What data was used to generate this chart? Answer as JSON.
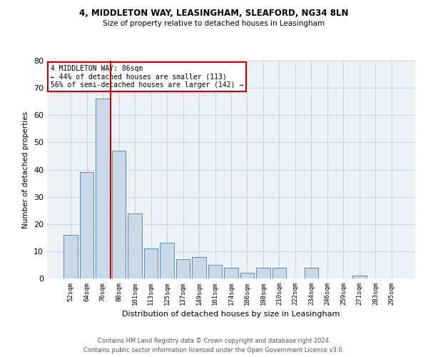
{
  "title1": "4, MIDDLETON WAY, LEASINGHAM, SLEAFORD, NG34 8LN",
  "title2": "Size of property relative to detached houses in Leasingham",
  "xlabel": "Distribution of detached houses by size in Leasingham",
  "ylabel": "Number of detached properties",
  "categories": [
    "52sqm",
    "64sqm",
    "76sqm",
    "88sqm",
    "101sqm",
    "113sqm",
    "125sqm",
    "137sqm",
    "149sqm",
    "161sqm",
    "174sqm",
    "186sqm",
    "198sqm",
    "210sqm",
    "222sqm",
    "234sqm",
    "246sqm",
    "259sqm",
    "271sqm",
    "283sqm",
    "295sqm"
  ],
  "values": [
    16,
    39,
    66,
    47,
    24,
    11,
    13,
    7,
    8,
    5,
    4,
    2,
    4,
    4,
    0,
    4,
    0,
    0,
    1,
    0,
    0
  ],
  "bar_color": "#c9d9e8",
  "bar_edge_color": "#5a8ab5",
  "annotation_text": "4 MIDDLETON WAY: 86sqm\n← 44% of detached houses are smaller (113)\n56% of semi-detached houses are larger (142) →",
  "annotation_box_color": "#ffffff",
  "annotation_box_edge_color": "#cc0000",
  "annotation_text_color": "#000000",
  "vline_color": "#cc0000",
  "vline_x_index": 2.5,
  "grid_color": "#c5d5e5",
  "background_color": "#edf2f7",
  "footer1": "Contains HM Land Registry data © Crown copyright and database right 2024.",
  "footer2": "Contains public sector information licensed under the Open Government Licence v3.0.",
  "ylim": [
    0,
    80
  ],
  "yticks": [
    0,
    10,
    20,
    30,
    40,
    50,
    60,
    70,
    80
  ]
}
